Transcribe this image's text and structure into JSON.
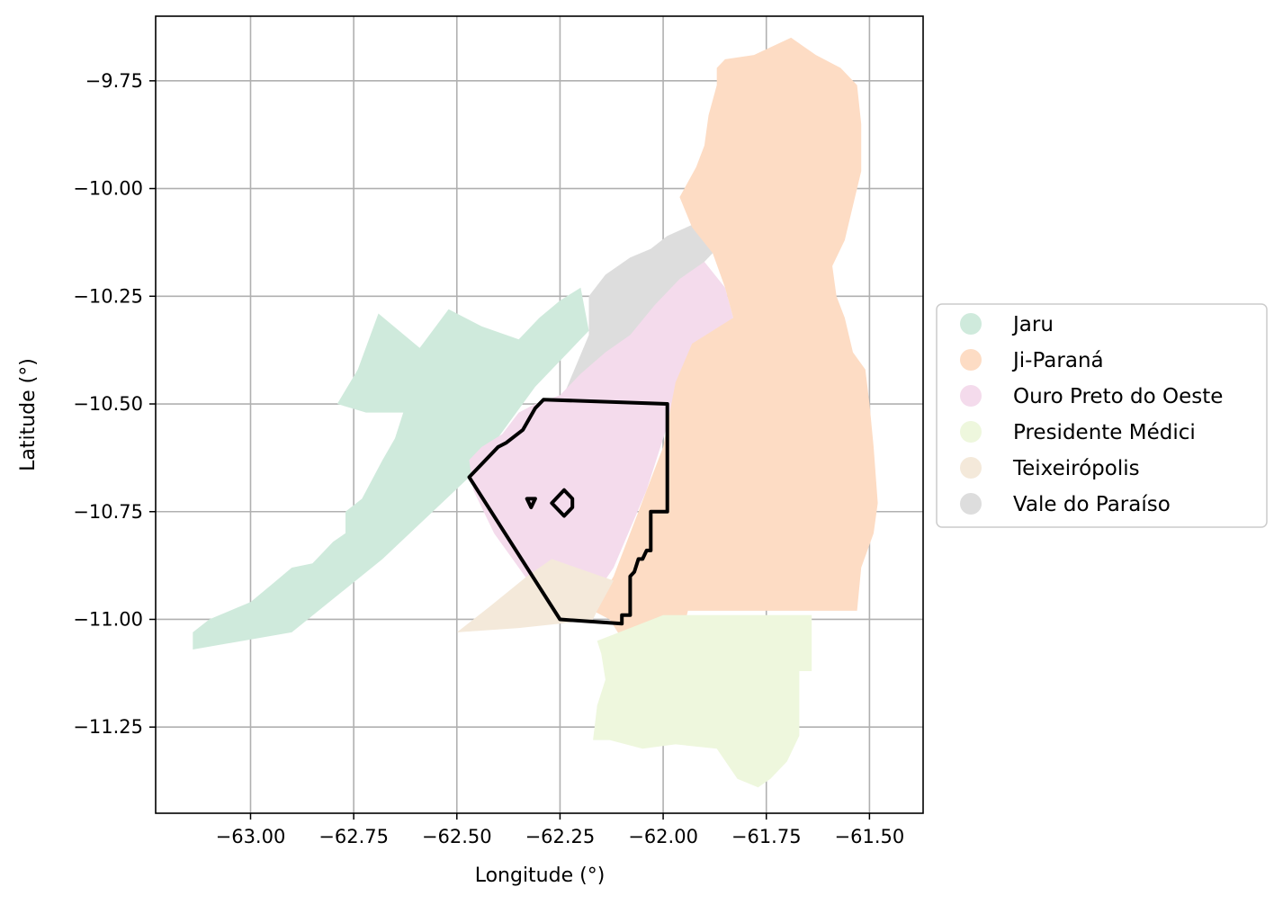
{
  "chart_data": {
    "type": "map",
    "xlabel": "Longitude (°)",
    "ylabel": "Latitude (°)",
    "xlim": [
      -63.23,
      -61.37
    ],
    "ylim": [
      -11.45,
      -9.6
    ],
    "x_ticks": [
      -63.0,
      -62.75,
      -62.5,
      -62.25,
      -62.0,
      -61.75,
      -61.5
    ],
    "x_tick_labels": [
      "−63.00",
      "−62.75",
      "−62.50",
      "−62.25",
      "−62.00",
      "−61.75",
      "−61.50"
    ],
    "y_ticks": [
      -9.75,
      -10.0,
      -10.25,
      -10.5,
      -10.75,
      -11.0,
      -11.25
    ],
    "y_tick_labels": [
      "−9.75",
      "−10.00",
      "−10.25",
      "−10.50",
      "−10.75",
      "−11.00",
      "−11.25"
    ],
    "grid": true,
    "legend_position": "center-right",
    "legend": [
      {
        "label": "Jaru",
        "color": "#cfeadc"
      },
      {
        "label": "Ji-Paraná",
        "color": "#fddcc4"
      },
      {
        "label": "Ouro Preto do Oeste",
        "color": "#f4dbec"
      },
      {
        "label": "Presidente Médici",
        "color": "#eef7dd"
      },
      {
        "label": "Teixeirópolis",
        "color": "#f4e9da"
      },
      {
        "label": "Vale do Paraíso",
        "color": "#dddddd"
      }
    ],
    "regions": [
      {
        "name": "Jaru",
        "color": "#cfeadc",
        "coords": [
          [
            -63.14,
            -11.07
          ],
          [
            -63.14,
            -11.03
          ],
          [
            -63.1,
            -11.0
          ],
          [
            -63.05,
            -10.98
          ],
          [
            -63.0,
            -10.96
          ],
          [
            -62.95,
            -10.92
          ],
          [
            -62.9,
            -10.88
          ],
          [
            -62.85,
            -10.87
          ],
          [
            -62.8,
            -10.82
          ],
          [
            -62.77,
            -10.8
          ],
          [
            -62.77,
            -10.75
          ],
          [
            -62.73,
            -10.72
          ],
          [
            -62.68,
            -10.63
          ],
          [
            -62.65,
            -10.58
          ],
          [
            -62.63,
            -10.52
          ],
          [
            -62.72,
            -10.52
          ],
          [
            -62.79,
            -10.5
          ],
          [
            -62.74,
            -10.42
          ],
          [
            -62.69,
            -10.29
          ],
          [
            -62.59,
            -10.37
          ],
          [
            -62.52,
            -10.28
          ],
          [
            -62.44,
            -10.32
          ],
          [
            -62.35,
            -10.35
          ],
          [
            -62.3,
            -10.3
          ],
          [
            -62.25,
            -10.26
          ],
          [
            -62.2,
            -10.23
          ],
          [
            -62.18,
            -10.33
          ],
          [
            -62.31,
            -10.46
          ],
          [
            -62.47,
            -10.67
          ],
          [
            -62.68,
            -10.86
          ],
          [
            -62.9,
            -11.03
          ],
          [
            -63.14,
            -11.07
          ]
        ]
      },
      {
        "name": "Vale do Paraíso",
        "color": "#dddddd",
        "coords": [
          [
            -62.18,
            -10.34
          ],
          [
            -62.18,
            -10.25
          ],
          [
            -62.14,
            -10.2
          ],
          [
            -62.08,
            -10.16
          ],
          [
            -62.03,
            -10.14
          ],
          [
            -61.99,
            -10.11
          ],
          [
            -61.92,
            -10.08
          ],
          [
            -61.88,
            -10.15
          ],
          [
            -61.93,
            -10.2
          ],
          [
            -61.97,
            -10.33
          ],
          [
            -62.0,
            -10.45
          ],
          [
            -62.11,
            -10.67
          ],
          [
            -62.25,
            -10.62
          ],
          [
            -62.25,
            -10.5
          ],
          [
            -62.18,
            -10.34
          ]
        ]
      },
      {
        "name": "Ouro Preto do Oeste",
        "color": "#f4dbec",
        "coords": [
          [
            -62.47,
            -10.63
          ],
          [
            -62.44,
            -10.6
          ],
          [
            -62.39,
            -10.57
          ],
          [
            -62.35,
            -10.52
          ],
          [
            -62.31,
            -10.5
          ],
          [
            -62.25,
            -10.48
          ],
          [
            -62.2,
            -10.43
          ],
          [
            -62.14,
            -10.38
          ],
          [
            -62.08,
            -10.34
          ],
          [
            -62.02,
            -10.27
          ],
          [
            -61.96,
            -10.21
          ],
          [
            -61.9,
            -10.17
          ],
          [
            -61.85,
            -10.23
          ],
          [
            -61.83,
            -10.3
          ],
          [
            -61.87,
            -10.33
          ],
          [
            -61.95,
            -10.45
          ],
          [
            -61.99,
            -10.55
          ],
          [
            -62.04,
            -10.7
          ],
          [
            -62.12,
            -10.88
          ],
          [
            -62.17,
            -10.95
          ],
          [
            -62.32,
            -10.92
          ],
          [
            -62.41,
            -10.8
          ],
          [
            -62.46,
            -10.7
          ],
          [
            -62.47,
            -10.63
          ]
        ]
      },
      {
        "name": "Ji-Paraná",
        "color": "#fddcc4",
        "coords": [
          [
            -61.87,
            -9.72
          ],
          [
            -61.85,
            -9.7
          ],
          [
            -61.78,
            -9.69
          ],
          [
            -61.69,
            -9.65
          ],
          [
            -61.63,
            -9.69
          ],
          [
            -61.57,
            -9.72
          ],
          [
            -61.53,
            -9.76
          ],
          [
            -61.52,
            -9.85
          ],
          [
            -61.52,
            -9.96
          ],
          [
            -61.54,
            -10.04
          ],
          [
            -61.56,
            -10.12
          ],
          [
            -61.59,
            -10.18
          ],
          [
            -61.58,
            -10.25
          ],
          [
            -61.56,
            -10.3
          ],
          [
            -61.54,
            -10.38
          ],
          [
            -61.51,
            -10.42
          ],
          [
            -61.5,
            -10.5
          ],
          [
            -61.49,
            -10.6
          ],
          [
            -61.48,
            -10.73
          ],
          [
            -61.49,
            -10.8
          ],
          [
            -61.52,
            -10.88
          ],
          [
            -61.53,
            -10.98
          ],
          [
            -61.63,
            -10.98
          ],
          [
            -61.7,
            -10.98
          ],
          [
            -61.78,
            -10.98
          ],
          [
            -61.85,
            -10.98
          ],
          [
            -61.94,
            -10.98
          ],
          [
            -61.95,
            -11.02
          ],
          [
            -61.96,
            -11.08
          ],
          [
            -62.0,
            -11.14
          ],
          [
            -62.04,
            -11.18
          ],
          [
            -62.07,
            -11.14
          ],
          [
            -62.09,
            -11.06
          ],
          [
            -62.13,
            -11.0
          ],
          [
            -62.17,
            -10.98
          ],
          [
            -62.12,
            -10.9
          ],
          [
            -62.06,
            -10.75
          ],
          [
            -62.0,
            -10.6
          ],
          [
            -61.97,
            -10.45
          ],
          [
            -61.93,
            -10.36
          ],
          [
            -61.83,
            -10.3
          ],
          [
            -61.85,
            -10.23
          ],
          [
            -61.88,
            -10.15
          ],
          [
            -61.93,
            -10.09
          ],
          [
            -61.96,
            -10.02
          ],
          [
            -61.92,
            -9.95
          ],
          [
            -61.9,
            -9.9
          ],
          [
            -61.89,
            -9.83
          ],
          [
            -61.87,
            -9.76
          ],
          [
            -61.87,
            -9.72
          ]
        ]
      },
      {
        "name": "Presidente Médici",
        "color": "#eef7dd",
        "coords": [
          [
            -62.16,
            -11.05
          ],
          [
            -62.08,
            -11.02
          ],
          [
            -62.0,
            -10.99
          ],
          [
            -61.9,
            -10.99
          ],
          [
            -61.78,
            -10.99
          ],
          [
            -61.7,
            -10.99
          ],
          [
            -61.64,
            -10.99
          ],
          [
            -61.64,
            -11.12
          ],
          [
            -61.67,
            -11.12
          ],
          [
            -61.67,
            -11.25
          ],
          [
            -61.67,
            -11.27
          ],
          [
            -61.7,
            -11.33
          ],
          [
            -61.74,
            -11.37
          ],
          [
            -61.77,
            -11.39
          ],
          [
            -61.82,
            -11.37
          ],
          [
            -61.87,
            -11.3
          ],
          [
            -61.97,
            -11.29
          ],
          [
            -62.05,
            -11.3
          ],
          [
            -62.13,
            -11.28
          ],
          [
            -62.17,
            -11.28
          ],
          [
            -62.16,
            -11.2
          ],
          [
            -62.14,
            -11.14
          ],
          [
            -62.15,
            -11.08
          ],
          [
            -62.16,
            -11.05
          ]
        ]
      },
      {
        "name": "Teixeirópolis",
        "color": "#f4e9da",
        "coords": [
          [
            -62.5,
            -11.03
          ],
          [
            -62.42,
            -10.97
          ],
          [
            -62.33,
            -10.9
          ],
          [
            -62.27,
            -10.86
          ],
          [
            -62.12,
            -10.91
          ],
          [
            -62.16,
            -10.98
          ],
          [
            -62.17,
            -11.0
          ],
          [
            -62.25,
            -11.01
          ],
          [
            -62.35,
            -11.02
          ],
          [
            -62.5,
            -11.03
          ]
        ]
      }
    ],
    "outlines": [
      {
        "coords": [
          [
            -62.29,
            -10.49
          ],
          [
            -61.99,
            -10.5
          ],
          [
            -61.99,
            -10.75
          ],
          [
            -62.03,
            -10.75
          ],
          [
            -62.03,
            -10.84
          ],
          [
            -62.04,
            -10.84
          ],
          [
            -62.05,
            -10.86
          ],
          [
            -62.06,
            -10.86
          ],
          [
            -62.07,
            -10.89
          ],
          [
            -62.08,
            -10.9
          ],
          [
            -62.08,
            -10.99
          ],
          [
            -62.1,
            -10.99
          ],
          [
            -62.1,
            -11.01
          ],
          [
            -62.25,
            -11.0
          ],
          [
            -62.47,
            -10.67
          ],
          [
            -62.4,
            -10.6
          ],
          [
            -62.38,
            -10.59
          ],
          [
            -62.34,
            -10.56
          ],
          [
            -62.31,
            -10.51
          ],
          [
            -62.29,
            -10.49
          ]
        ]
      },
      {
        "coords": [
          [
            -62.24,
            -10.7
          ],
          [
            -62.27,
            -10.73
          ],
          [
            -62.24,
            -10.76
          ],
          [
            -62.22,
            -10.74
          ],
          [
            -62.22,
            -10.72
          ],
          [
            -62.24,
            -10.7
          ]
        ]
      },
      {
        "coords": [
          [
            -62.33,
            -10.72
          ],
          [
            -62.31,
            -10.72
          ],
          [
            -62.32,
            -10.74
          ],
          [
            -62.33,
            -10.72
          ]
        ]
      }
    ]
  }
}
